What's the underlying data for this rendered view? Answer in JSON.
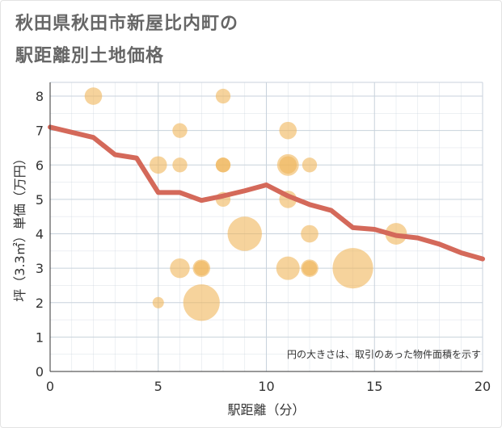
{
  "chart_data": {
    "type": "scatter",
    "title_line1": "秋田県秋田市新屋比内町の",
    "title_line2": "駅距離別土地価格",
    "xlabel": "駅距離（分）",
    "ylabel": "坪（3.3㎡）単価（万円）",
    "xlim": [
      0,
      20
    ],
    "ylim": [
      0,
      8.4
    ],
    "xticks": [
      0,
      5,
      10,
      15,
      20
    ],
    "yticks": [
      0,
      1,
      2,
      3,
      4,
      5,
      6,
      7,
      8
    ],
    "note": "円の大きさは、取引のあった物件面積を示す",
    "colors": {
      "bubble": "#f0b55a",
      "line": "#d4695a",
      "grid": "#c8d2dc",
      "axis_text": "#333333"
    },
    "bubbles": [
      {
        "x": 2,
        "y": 8,
        "size": 3
      },
      {
        "x": 8,
        "y": 8,
        "size": 2
      },
      {
        "x": 6,
        "y": 7,
        "size": 2
      },
      {
        "x": 11,
        "y": 7,
        "size": 3
      },
      {
        "x": 5,
        "y": 6,
        "size": 3
      },
      {
        "x": 6,
        "y": 6,
        "size": 2
      },
      {
        "x": 8,
        "y": 6,
        "size": 2
      },
      {
        "x": 8,
        "y": 6,
        "size": 2
      },
      {
        "x": 11,
        "y": 6,
        "size": 5
      },
      {
        "x": 11,
        "y": 6,
        "size": 3
      },
      {
        "x": 12,
        "y": 6,
        "size": 2
      },
      {
        "x": 8,
        "y": 5,
        "size": 2
      },
      {
        "x": 11,
        "y": 5,
        "size": 3
      },
      {
        "x": 9,
        "y": 4,
        "size": 14
      },
      {
        "x": 12,
        "y": 4,
        "size": 3
      },
      {
        "x": 16,
        "y": 4,
        "size": 5
      },
      {
        "x": 6,
        "y": 3,
        "size": 4
      },
      {
        "x": 7,
        "y": 3,
        "size": 3
      },
      {
        "x": 7,
        "y": 3,
        "size": 2
      },
      {
        "x": 11,
        "y": 3,
        "size": 6
      },
      {
        "x": 12,
        "y": 3,
        "size": 3
      },
      {
        "x": 12,
        "y": 3,
        "size": 2
      },
      {
        "x": 14,
        "y": 3,
        "size": 20
      },
      {
        "x": 5,
        "y": 2,
        "size": 1
      },
      {
        "x": 7,
        "y": 2,
        "size": 16
      }
    ],
    "trend": [
      {
        "x": 0,
        "y": 7.1
      },
      {
        "x": 1,
        "y": 6.95
      },
      {
        "x": 2,
        "y": 6.8
      },
      {
        "x": 3,
        "y": 6.3
      },
      {
        "x": 4,
        "y": 6.2
      },
      {
        "x": 5,
        "y": 5.2
      },
      {
        "x": 6,
        "y": 5.2
      },
      {
        "x": 7,
        "y": 4.97
      },
      {
        "x": 8,
        "y": 5.1
      },
      {
        "x": 9,
        "y": 5.25
      },
      {
        "x": 10,
        "y": 5.42
      },
      {
        "x": 11,
        "y": 5.1
      },
      {
        "x": 12,
        "y": 4.85
      },
      {
        "x": 13,
        "y": 4.68
      },
      {
        "x": 14,
        "y": 4.18
      },
      {
        "x": 15,
        "y": 4.13
      },
      {
        "x": 16,
        "y": 3.95
      },
      {
        "x": 17,
        "y": 3.88
      },
      {
        "x": 18,
        "y": 3.7
      },
      {
        "x": 19,
        "y": 3.45
      },
      {
        "x": 20,
        "y": 3.27
      }
    ]
  }
}
